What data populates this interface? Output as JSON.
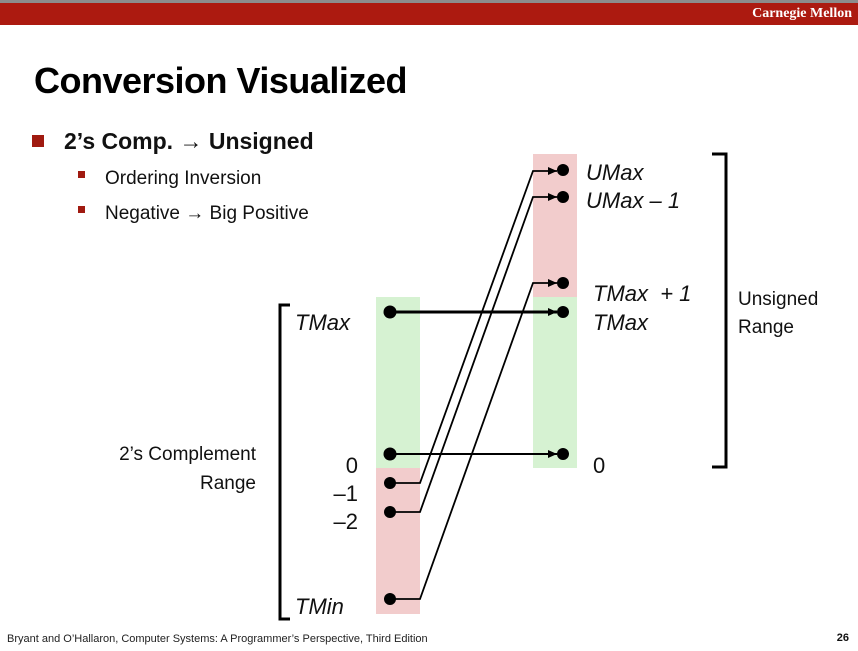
{
  "header": {
    "brand": "Carnegie Mellon"
  },
  "title": "Conversion Visualized",
  "bullets": {
    "main": "2’s Comp. → Unsigned",
    "sub": [
      "Ordering Inversion",
      "Negative → Big Positive"
    ]
  },
  "diagram": {
    "left_labels": {
      "tmax": "TMax",
      "zero": "0",
      "neg1": "–1",
      "neg2": "–2",
      "tmin": "TMin"
    },
    "right_labels": {
      "umax": "UMax",
      "umax_minus_1": "UMax – 1",
      "tmax_plus_1": "TMax  + 1",
      "tmax": "TMax",
      "zero": "0"
    },
    "left_range_label": [
      "2’s Complement",
      "Range"
    ],
    "right_range_label": [
      "Unsigned",
      "Range"
    ],
    "colors": {
      "positive": "#d6f2d2",
      "negative": "#f2cccc"
    }
  },
  "footer": {
    "citation": "Bryant and O’Hallaron, Computer Systems: A Programmer’s Perspective, Third Edition",
    "page": "26"
  }
}
